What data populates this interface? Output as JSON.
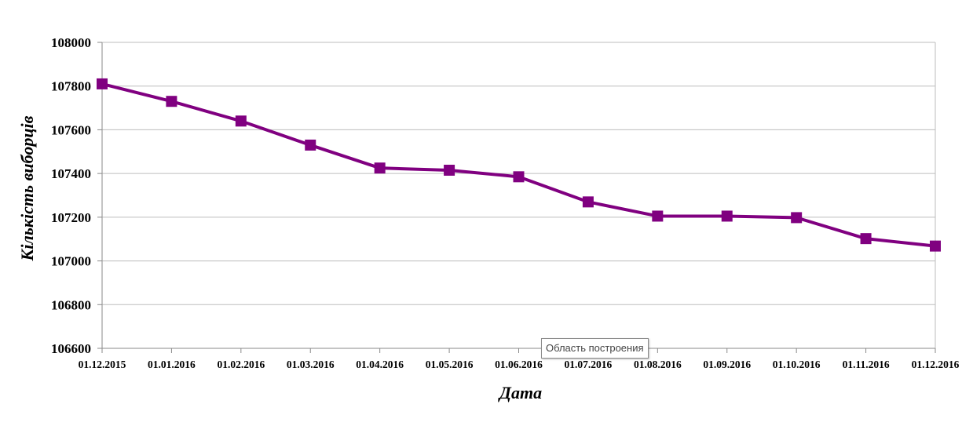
{
  "chart_data": {
    "type": "line",
    "x": [
      "01.12.2015",
      "01.01.2016",
      "01.02.2016",
      "01.03.2016",
      "01.04.2016",
      "01.05.2016",
      "01.06.2016",
      "01.07.2016",
      "01.08.2016",
      "01.09.2016",
      "01.10.2016",
      "01.11.2016",
      "01.12.2016"
    ],
    "series": [
      {
        "values": [
          107810,
          107730,
          107640,
          107530,
          107425,
          107415,
          107385,
          107270,
          107205,
          107205,
          107198,
          107102,
          107068
        ],
        "color": "#800080",
        "marker": "square"
      }
    ],
    "xlabel": "Дата",
    "ylabel": "Кількість виборців",
    "ylim": [
      106600,
      108000
    ],
    "yticks": [
      "106600",
      "106800",
      "107000",
      "107200",
      "107400",
      "107600",
      "107800",
      "108000"
    ],
    "grid": true,
    "legend": "none"
  },
  "tooltip": {
    "text": "Область построения"
  }
}
